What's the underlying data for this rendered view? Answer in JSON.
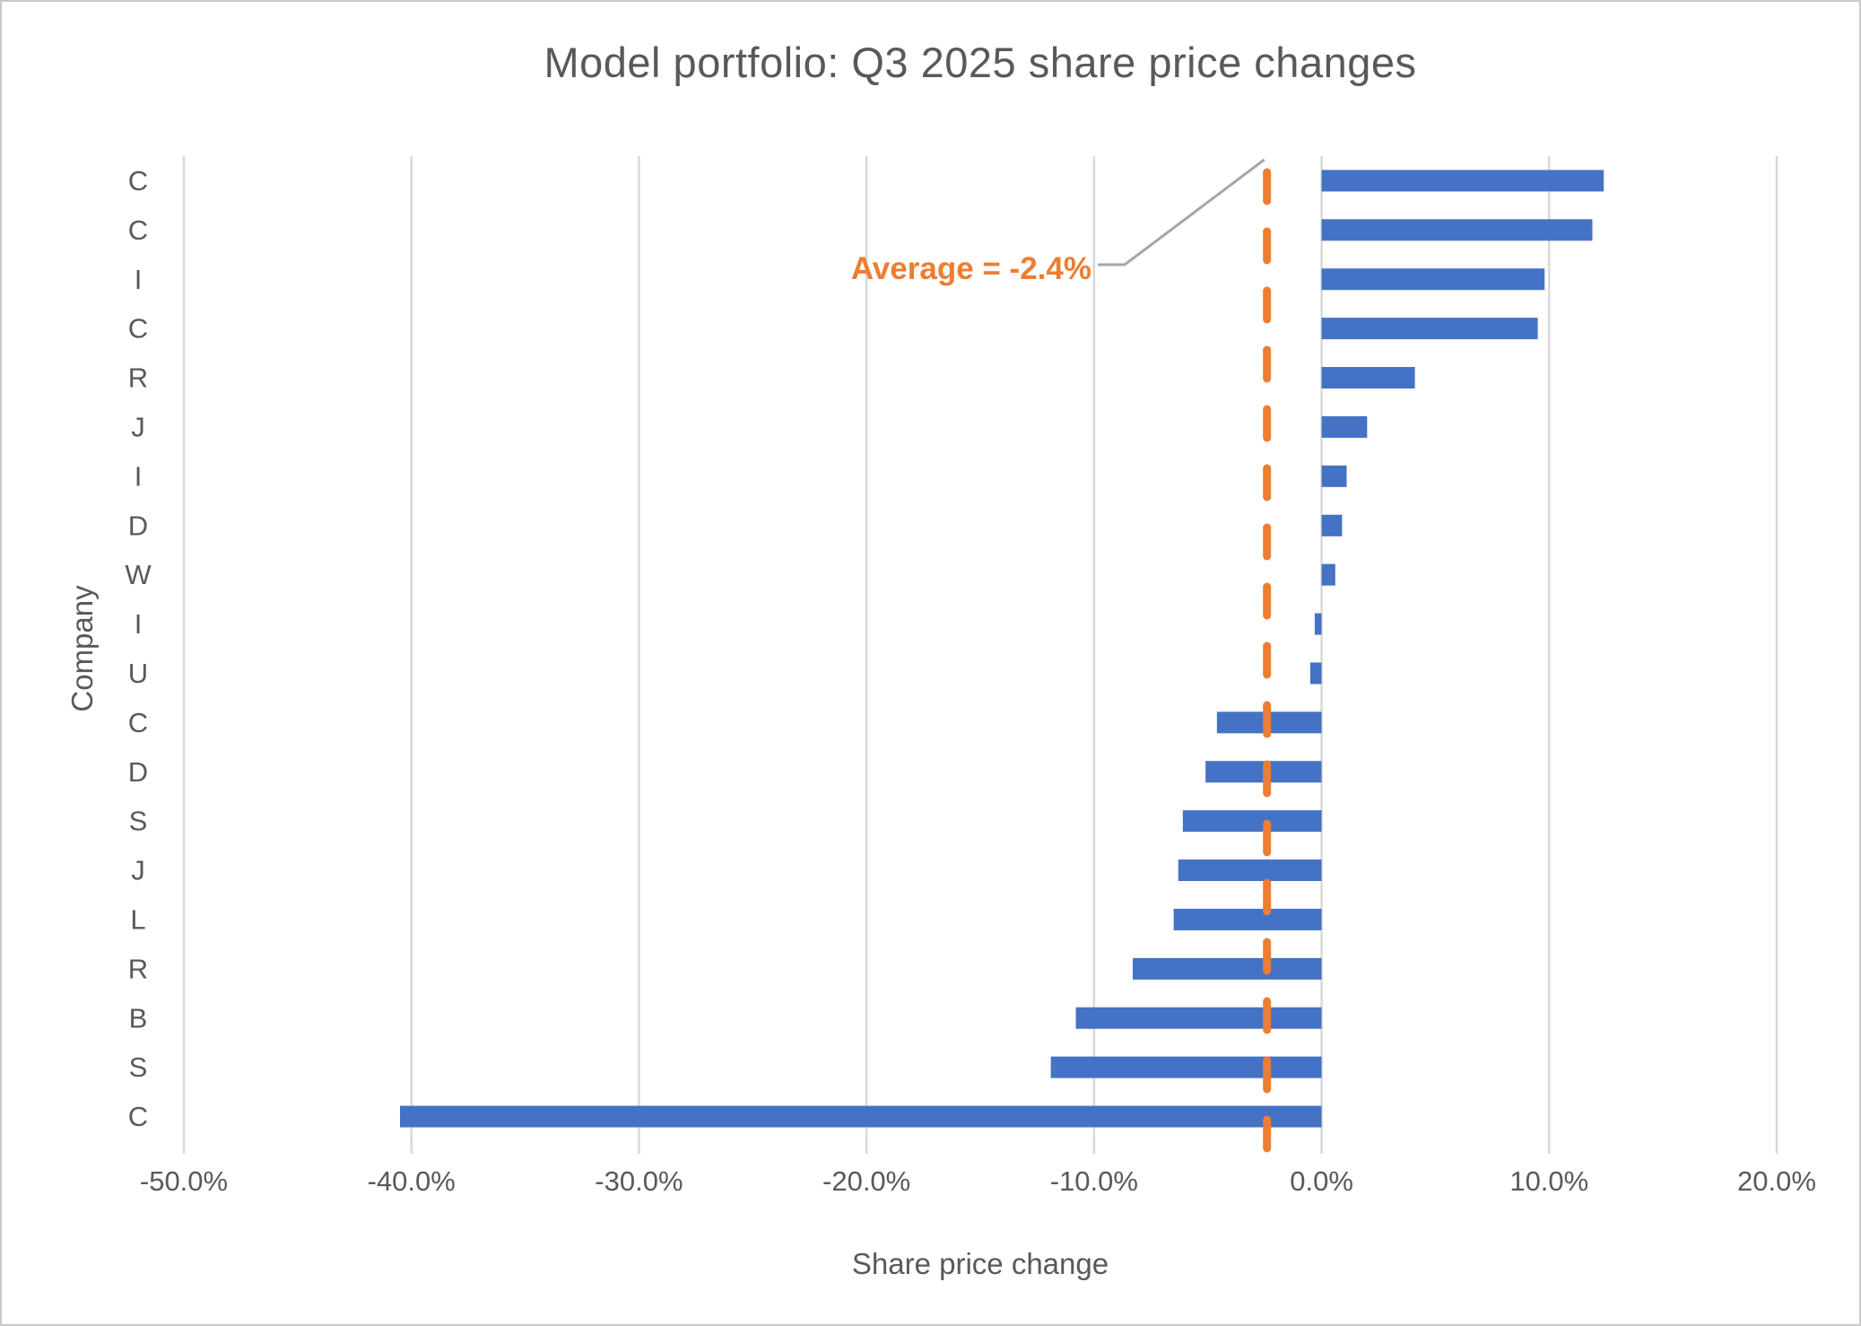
{
  "chart_data": {
    "type": "bar",
    "orientation": "horizontal",
    "title": "Model portfolio: Q3 2025 share price changes",
    "xlabel": "Share price change",
    "ylabel": "Company",
    "categories": [
      "C",
      "C",
      "I",
      "C",
      "R",
      "J",
      "I",
      "D",
      "W",
      "I",
      "U",
      "C",
      "D",
      "S",
      "J",
      "L",
      "R",
      "B",
      "S",
      "C"
    ],
    "values": [
      12.4,
      11.9,
      9.8,
      9.5,
      4.1,
      2.0,
      1.1,
      0.9,
      0.6,
      -0.3,
      -0.5,
      -4.6,
      -5.1,
      -6.1,
      -6.3,
      -6.5,
      -8.3,
      -10.8,
      -11.9,
      -40.5
    ],
    "xlim": [
      -50,
      20
    ],
    "x_tick_values": [
      -50,
      -40,
      -30,
      -20,
      -10,
      0,
      10,
      20
    ],
    "x_tick_labels": [
      "-50.0%",
      "-40.0%",
      "-30.0%",
      "-20.0%",
      "-10.0%",
      "0.0%",
      "10.0%",
      "20.0%"
    ],
    "grid": true,
    "legend": "none",
    "average_line": {
      "value": -2.4,
      "label": "Average = -2.4%",
      "style": "dashed"
    }
  },
  "colors": {
    "bar": "#4472C4",
    "average_line": "#ED7D31",
    "gridline": "#D9D9D9",
    "tick_mark": "#D9D9D9",
    "axis_text": "#595959",
    "title_text": "#595959",
    "leader_line": "#A6A6A6"
  }
}
